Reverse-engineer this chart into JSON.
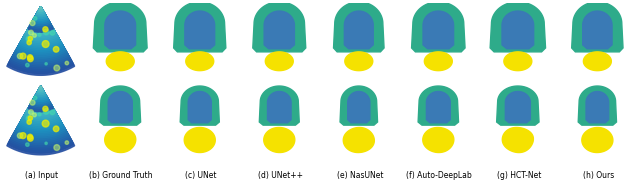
{
  "fig_width": 6.4,
  "fig_height": 1.88,
  "dpi": 100,
  "background_color": "#ffffff",
  "panel_bg": "#3d006e",
  "teal_outer": "#2eab8a",
  "teal_inner": "#3a7ab5",
  "yellow_color": "#f5e200",
  "labels": [
    "(a) Input",
    "(b) Ground Truth",
    "(c) UNet",
    "(d) UNet++",
    "(e) NasUNet",
    "(f) Auto-DeepLab",
    "(g) HCT-Net",
    "(h) Ours"
  ],
  "label_fontsize": 5.5,
  "n_cols": 8,
  "n_rows": 2
}
